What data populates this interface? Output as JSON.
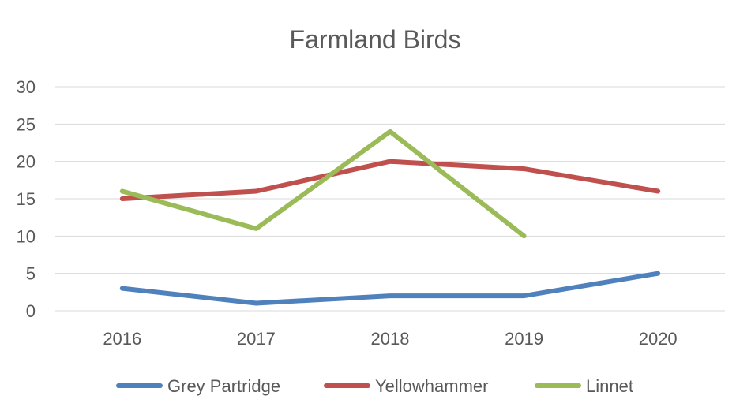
{
  "chart_data": {
    "type": "line",
    "title": "Farmland Birds",
    "xlabel": "",
    "ylabel": "",
    "categories": [
      "2016",
      "2017",
      "2018",
      "2019",
      "2020"
    ],
    "ylim": [
      0,
      30
    ],
    "yticks": [
      0,
      5,
      10,
      15,
      20,
      25,
      30
    ],
    "grid": true,
    "legend": "bottom",
    "series": [
      {
        "name": "Grey Partridge",
        "color": "#4f81bd",
        "values": [
          3,
          1,
          2,
          2,
          5
        ]
      },
      {
        "name": "Yellowhammer",
        "color": "#c0504d",
        "values": [
          15,
          16,
          20,
          19,
          16
        ]
      },
      {
        "name": "Linnet",
        "color": "#9bbb59",
        "values": [
          16,
          11,
          24,
          10,
          null
        ]
      }
    ]
  }
}
